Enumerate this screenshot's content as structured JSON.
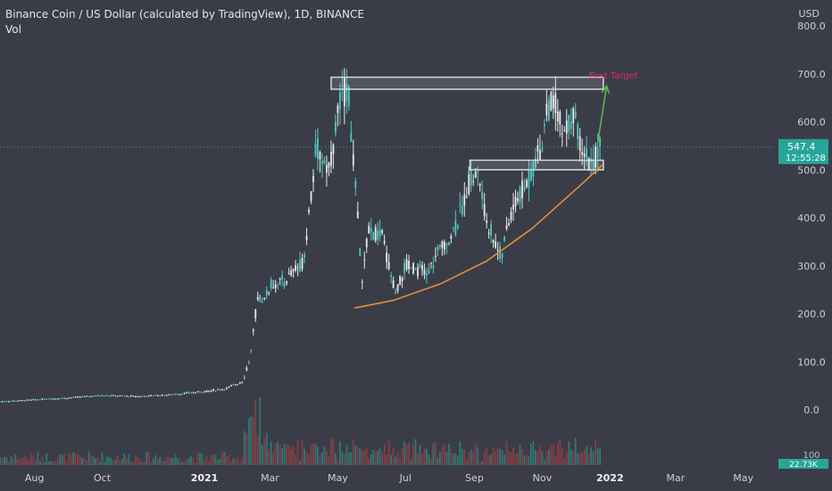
{
  "header": {
    "title": "Binance Coin / US Dollar (calculated by TradingView), 1D, BINANCE",
    "volume_label": "Vol",
    "currency": "USD"
  },
  "price_tag": {
    "price": "547.4",
    "countdown": "12:55:28"
  },
  "volume_tag": {
    "value": "22.73K",
    "axis_label": "100"
  },
  "annotation": {
    "label": "First Target"
  },
  "colors": {
    "background": "#3a3d47",
    "candle": "#52c7c3",
    "candle_down": "#e8eaea",
    "curve": "#e08f3c",
    "arrow": "#57c04a",
    "label": "#e6286a",
    "zone": "#d8d8d8",
    "price_line": "#26a69a",
    "vol_up": "#2f8f88",
    "vol_down": "#a43f45"
  },
  "chart_data": {
    "type": "candlestick",
    "yaxis": {
      "ticks": [
        0,
        100,
        200,
        300,
        400,
        500,
        600,
        700,
        800
      ],
      "labels": [
        "0.0",
        "100.0",
        "200.0",
        "300.0",
        "400.0",
        "500.0",
        "600.0",
        "700.0",
        "800.0"
      ]
    },
    "xaxis": {
      "labels": [
        "Aug",
        "Oct",
        "2021",
        "Mar",
        "May",
        "Jul",
        "Sep",
        "Nov",
        "2022",
        "Mar",
        "May"
      ],
      "dates": [
        "2020-08-01",
        "2020-10-01",
        "2021-01-01",
        "2021-03-01",
        "2021-05-01",
        "2021-07-01",
        "2021-09-01",
        "2021-11-01",
        "2022-01-01",
        "2022-03-01",
        "2022-05-01"
      ],
      "bold": [
        "2021",
        "2022"
      ]
    },
    "last_price": 547.4,
    "anchors": [
      [
        "2020-07-01",
        17
      ],
      [
        "2020-08-01",
        21
      ],
      [
        "2020-09-01",
        25
      ],
      [
        "2020-10-01",
        30
      ],
      [
        "2020-11-01",
        28
      ],
      [
        "2020-12-01",
        31
      ],
      [
        "2021-01-01",
        38
      ],
      [
        "2021-01-20",
        44
      ],
      [
        "2021-02-05",
        60
      ],
      [
        "2021-02-12",
        120
      ],
      [
        "2021-02-18",
        240
      ],
      [
        "2021-02-23",
        220
      ],
      [
        "2021-03-01",
        260
      ],
      [
        "2021-03-15",
        270
      ],
      [
        "2021-03-31",
        310
      ],
      [
        "2021-04-12",
        550
      ],
      [
        "2021-04-23",
        500
      ],
      [
        "2021-05-03",
        640
      ],
      [
        "2021-05-10",
        680
      ],
      [
        "2021-05-18",
        430
      ],
      [
        "2021-05-23",
        260
      ],
      [
        "2021-05-28",
        370
      ],
      [
        "2021-06-10",
        360
      ],
      [
        "2021-06-22",
        240
      ],
      [
        "2021-07-01",
        300
      ],
      [
        "2021-07-15",
        290
      ],
      [
        "2021-07-20",
        280
      ],
      [
        "2021-07-31",
        330
      ],
      [
        "2021-08-15",
        380
      ],
      [
        "2021-08-28",
        480
      ],
      [
        "2021-09-05",
        490
      ],
      [
        "2021-09-10",
        410
      ],
      [
        "2021-09-21",
        340
      ],
      [
        "2021-09-25",
        320
      ],
      [
        "2021-10-05",
        420
      ],
      [
        "2021-10-20",
        480
      ],
      [
        "2021-11-01",
        560
      ],
      [
        "2021-11-05",
        630
      ],
      [
        "2021-11-14",
        640
      ],
      [
        "2021-11-20",
        560
      ],
      [
        "2021-11-28",
        620
      ],
      [
        "2021-12-04",
        570
      ],
      [
        "2021-12-13",
        520
      ],
      [
        "2021-12-20",
        530
      ],
      [
        "2021-12-24",
        547.4
      ]
    ],
    "zones": [
      {
        "from": "2021-04-25",
        "to": "2021-12-26",
        "low": 668,
        "high": 693
      },
      {
        "from": "2021-08-28",
        "to": "2021-12-26",
        "low": 500,
        "high": 520
      }
    ],
    "support_curve": [
      [
        "2021-05-16",
        212
      ],
      [
        "2021-06-20",
        228
      ],
      [
        "2021-08-01",
        262
      ],
      [
        "2021-09-12",
        310
      ],
      [
        "2021-10-23",
        378
      ],
      [
        "2021-12-04",
        465
      ],
      [
        "2021-12-25",
        510
      ]
    ],
    "target_arrow": {
      "from": [
        "2021-12-21",
        557
      ],
      "to": [
        "2021-12-29",
        675
      ]
    }
  }
}
